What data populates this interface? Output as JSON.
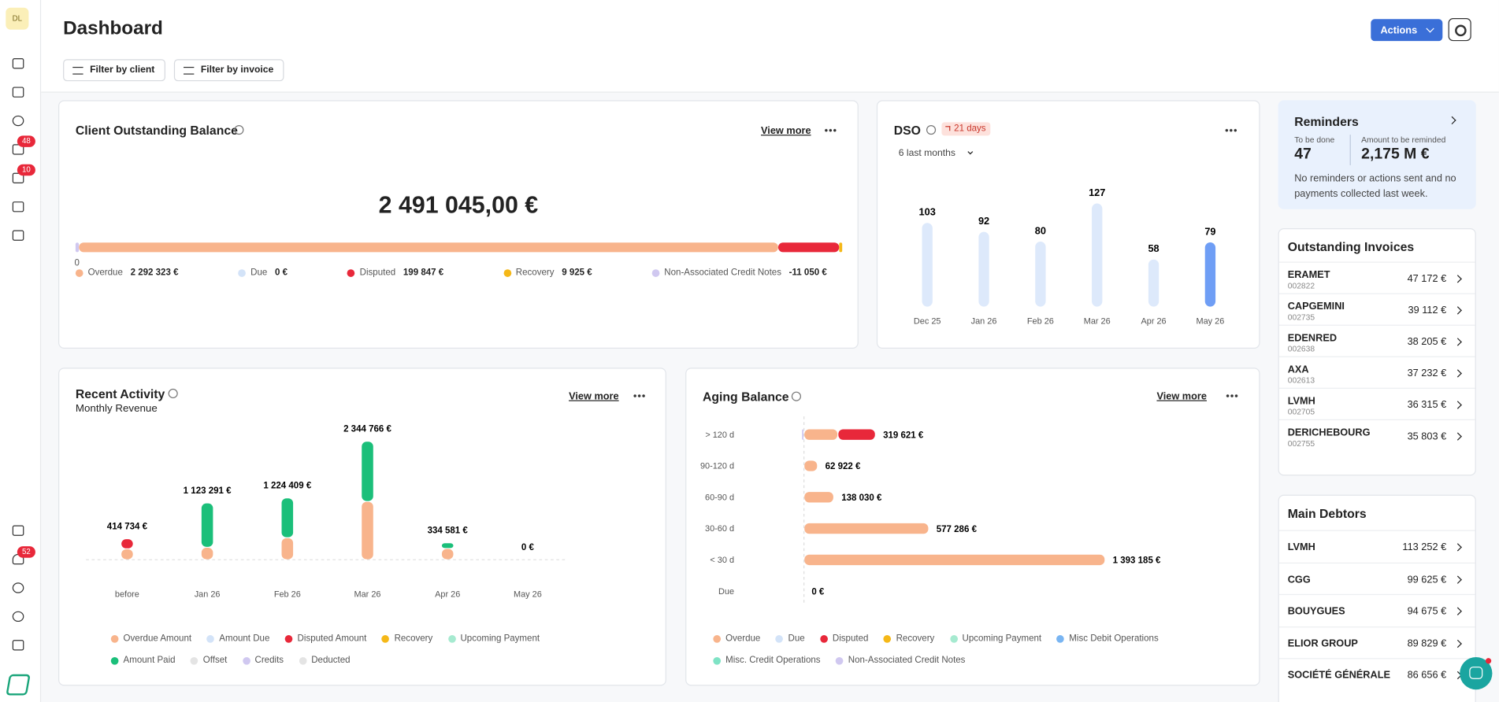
{
  "sidebar": {
    "avatar": "DL",
    "badges": [
      48,
      10,
      52
    ]
  },
  "header": {
    "title": "Dashboard",
    "actions": "Actions",
    "filters": [
      "Filter by client",
      "Filter by invoice"
    ]
  },
  "balance": {
    "title": "Client Outstanding Balance",
    "view_more": "View more",
    "total": "2 491 045,00 €",
    "axis_label": 0,
    "items": [
      {
        "name": "Overdue",
        "value": 2292323,
        "value_label": "2 292 323 €",
        "color": "#f8b48c"
      },
      {
        "name": "Due",
        "value": 0,
        "value_label": "0 €",
        "color": "#d3e3f8"
      },
      {
        "name": "Disputed",
        "value": 199847,
        "value_label": "199 847 €",
        "color": "#e8283a"
      },
      {
        "name": "Recovery",
        "value": 9925,
        "value_label": "9 925 €",
        "color": "#f5b818"
      },
      {
        "name": "Non-Associated Credit Notes",
        "value": -11050,
        "value_label": "-11 050 €",
        "color": "#d0c8f0"
      }
    ]
  },
  "dso": {
    "title": "DSO",
    "badge": "21 days",
    "period": "6 last months",
    "categories": [
      "Dec 25",
      "Jan 26",
      "Feb 26",
      "Mar 26",
      "Apr 26",
      "May 26"
    ],
    "values": [
      103,
      92,
      80,
      127,
      58,
      79
    ],
    "color": "#dde9fb",
    "highlight_color": "#6f9ef5"
  },
  "activity": {
    "title": "Recent Activity",
    "subtitle": "Monthly Revenue",
    "view_more": "View more",
    "categories": [
      "before",
      "Jan 26",
      "Feb 26",
      "Mar 26",
      "Apr 26",
      "May 26"
    ],
    "total_labels": [
      "414 734 €",
      "1 123 291 €",
      "1 224 409 €",
      "2 344 766 €",
      "334 581 €",
      "0 €"
    ],
    "series": [
      {
        "name": "Overdue Amount",
        "color": "#f8b48c",
        "values": [
          215000,
          245000,
          435000,
          1153000,
          221581,
          0
        ]
      },
      {
        "name": "Amount Due",
        "color": "#d3e3f8",
        "values": [
          0,
          0,
          0,
          0,
          0,
          0
        ]
      },
      {
        "name": "Disputed Amount",
        "color": "#e8283a",
        "values": [
          199734,
          0,
          0,
          0,
          0,
          0
        ]
      },
      {
        "name": "Recovery",
        "color": "#f5b818",
        "values": [
          0,
          0,
          0,
          0,
          0,
          0
        ]
      },
      {
        "name": "Upcoming Payment",
        "color": "#a6ead0",
        "values": [
          0,
          0,
          0,
          0,
          0,
          0
        ]
      },
      {
        "name": "Amount Paid",
        "color": "#1bbf7a",
        "values": [
          0,
          878291,
          789409,
          1191766,
          113000,
          0
        ]
      },
      {
        "name": "Offset",
        "color": "#e4e4e4",
        "values": [
          0,
          0,
          0,
          0,
          0,
          0
        ]
      },
      {
        "name": "Credits",
        "color": "#d0c8f0",
        "values": [
          0,
          0,
          0,
          0,
          0,
          0
        ]
      },
      {
        "name": "Deducted",
        "color": "#e4e4e4",
        "values": [
          0,
          0,
          0,
          0,
          0,
          0
        ]
      }
    ]
  },
  "aging": {
    "title": "Aging Balance",
    "view_more": "View more",
    "categories": [
      "> 120 d",
      "90-120 d",
      "60-90 d",
      "30-60 d",
      "< 30 d",
      "Due"
    ],
    "total_labels": [
      "319 621 €",
      "62 922 €",
      "138 030 €",
      "577 286 €",
      "1 393 185 €",
      "0 €"
    ],
    "series": [
      {
        "name": "Overdue",
        "color": "#f8b48c",
        "values": [
          157000,
          62922,
          138030,
          577286,
          1393185,
          0
        ]
      },
      {
        "name": "Due",
        "color": "#d3e3f8",
        "values": [
          0,
          0,
          0,
          0,
          0,
          0
        ]
      },
      {
        "name": "Disputed",
        "color": "#e8283a",
        "values": [
          173671,
          0,
          0,
          0,
          0,
          0
        ]
      },
      {
        "name": "Recovery",
        "color": "#f5b818",
        "values": [
          0,
          0,
          0,
          0,
          0,
          0
        ]
      },
      {
        "name": "Upcoming Payment",
        "color": "#a6ead0",
        "values": [
          0,
          0,
          0,
          0,
          0,
          0
        ]
      },
      {
        "name": "Misc Debit Operations",
        "color": "#79b5f2",
        "values": [
          0,
          0,
          0,
          0,
          0,
          0
        ]
      },
      {
        "name": "Misc. Credit Operations",
        "color": "#7fe3c5",
        "values": [
          0,
          0,
          0,
          0,
          0,
          0
        ]
      },
      {
        "name": "Non-Associated Credit Notes",
        "color": "#d0c8f0",
        "values": [
          -11050,
          0,
          0,
          0,
          0,
          0
        ]
      }
    ]
  },
  "reminders": {
    "title": "Reminders",
    "to_do_label": "To be done",
    "to_do": 47,
    "amount_label": "Amount to be reminded",
    "amount": "2,175 M €",
    "note": "No reminders or actions sent and no payments collected last week."
  },
  "outstanding": {
    "title": "Outstanding Invoices",
    "rows": [
      {
        "name": "ERAMET",
        "id": "002822",
        "amount": "47 172 €"
      },
      {
        "name": "CAPGEMINI",
        "id": "002735",
        "amount": "39 112 €"
      },
      {
        "name": "EDENRED",
        "id": "002638",
        "amount": "38 205 €"
      },
      {
        "name": "AXA",
        "id": "002613",
        "amount": "37 232 €"
      },
      {
        "name": "LVMH",
        "id": "002705",
        "amount": "36 315 €"
      },
      {
        "name": "DERICHEBOURG",
        "id": "002755",
        "amount": "35 803 €"
      }
    ]
  },
  "debtors": {
    "title": "Main Debtors",
    "rows": [
      {
        "name": "LVMH",
        "amount": "113 252 €"
      },
      {
        "name": "CGG",
        "amount": "99 625 €"
      },
      {
        "name": "BOUYGUES",
        "amount": "94 675 €"
      },
      {
        "name": "ELIOR GROUP",
        "amount": "89 829 €"
      },
      {
        "name": "SOCIÉTÉ GÉNÉRALE",
        "amount": "86 656 €"
      }
    ]
  }
}
